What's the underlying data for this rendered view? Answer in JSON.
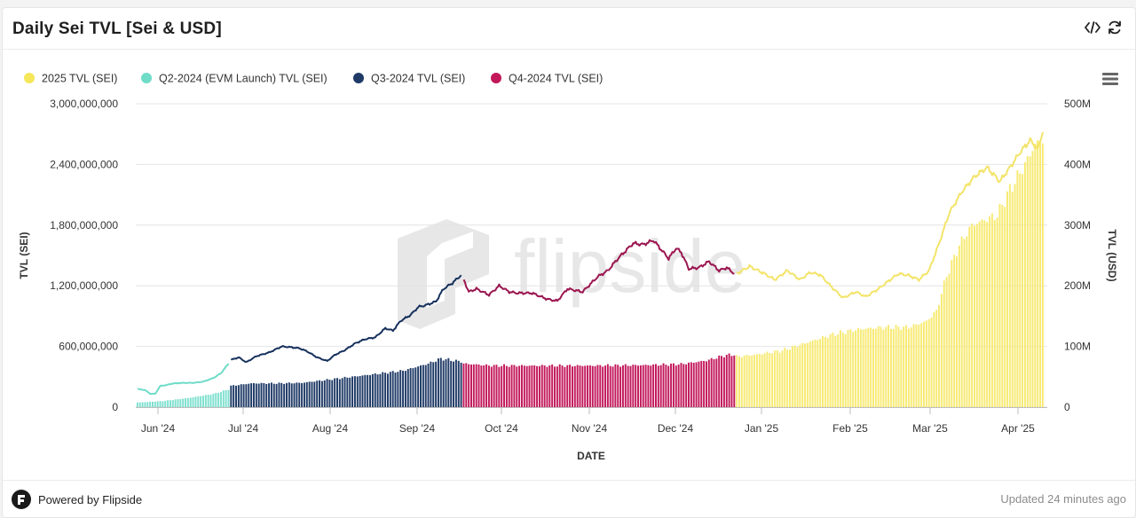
{
  "header": {
    "title": "Daily Sei TVL [Sei & USD]"
  },
  "footer": {
    "brand_label": "Powered by Flipside",
    "updated_label": "Updated 24 minutes ago"
  },
  "watermark": "flipside",
  "chart_data": {
    "type": "bar+line",
    "xlabel": "DATE",
    "ylabel_left": "TVL (SEI)",
    "ylabel_right": "TVL (USD)",
    "ylim_left": [
      0,
      3000000000
    ],
    "ylim_right": [
      0,
      500000000
    ],
    "yticks_left": [
      "3,000,000,000",
      "2,400,000,000",
      "1,800,000,000",
      "1,200,000,000",
      "600,000,000",
      "0"
    ],
    "yticks_right": [
      "500M",
      "400M",
      "300M",
      "200M",
      "100M",
      "0"
    ],
    "xticks": [
      "Jun '24",
      "Jul '24",
      "Aug '24",
      "Sep '24",
      "Oct '24",
      "Nov '24",
      "Dec '24",
      "Jan '25",
      "Feb '25",
      "Mar '25",
      "Apr '25"
    ],
    "legend_position": "top-left",
    "legend": [
      {
        "name": "2025 TVL (SEI)",
        "color": "#f5e65a"
      },
      {
        "name": "Q2-2024 (EVM Launch) TVL (SEI)",
        "color": "#6fdcc8"
      },
      {
        "name": "Q3-2024 TVL (SEI)",
        "color": "#1f3a66"
      },
      {
        "name": "Q4-2024 TVL (SEI)",
        "color": "#c2185b"
      }
    ],
    "series": [
      {
        "name": "Q2-2024 (EVM Launch) TVL (SEI)",
        "color": "#6fdcc8",
        "bar_color": "#7fe0cf",
        "axis": "left",
        "start_day": 0,
        "bar_key_days": [
          0,
          10,
          20,
          30,
          36
        ],
        "bar_key_values": [
          45000000,
          60000000,
          90000000,
          130000000,
          175000000
        ],
        "line_key_days": [
          0,
          3,
          5,
          7,
          9,
          11,
          14,
          18,
          22,
          26,
          30,
          33,
          36
        ],
        "line_key_values": [
          30000000,
          28000000,
          22000000,
          22000000,
          35000000,
          36000000,
          39000000,
          40000000,
          40000000,
          42000000,
          48000000,
          56000000,
          72000000
        ]
      },
      {
        "name": "Q3-2024 TVL (SEI)",
        "color": "#17315d",
        "bar_color": "#1f3a66",
        "axis": "left",
        "start_day": 37,
        "bar_key_days": [
          37,
          45,
          55,
          65,
          75,
          85,
          95,
          105,
          115,
          120,
          128
        ],
        "bar_key_values": [
          210000000,
          235000000,
          235000000,
          240000000,
          270000000,
          300000000,
          330000000,
          360000000,
          430000000,
          480000000,
          450000000
        ],
        "line_key_days": [
          37,
          40,
          43,
          47,
          52,
          57,
          60,
          64,
          67,
          71,
          75,
          78,
          82,
          86,
          90,
          94,
          98,
          101,
          104,
          108,
          111,
          114,
          118,
          121,
          124,
          126,
          128
        ],
        "line_key_values": [
          78000000,
          82000000,
          74000000,
          84000000,
          90000000,
          100000000,
          99000000,
          97000000,
          92000000,
          82000000,
          76000000,
          86000000,
          94000000,
          105000000,
          112000000,
          115000000,
          130000000,
          126000000,
          142000000,
          152000000,
          165000000,
          168000000,
          174000000,
          195000000,
          203000000,
          210000000,
          218000000
        ]
      },
      {
        "name": "Q4-2024 TVL (SEI)",
        "color": "#9b1650",
        "bar_color": "#c2185b",
        "axis": "left",
        "start_day": 129,
        "bar_key_days": [
          129,
          140,
          160,
          180,
          200,
          215,
          225,
          232,
          236
        ],
        "bar_key_values": [
          430000000,
          410000000,
          410000000,
          410000000,
          415000000,
          425000000,
          460000000,
          510000000,
          520000000
        ],
        "line_key_days": [
          129,
          131,
          134,
          139,
          143,
          147,
          150,
          156,
          162,
          166,
          170,
          176,
          182,
          186,
          190,
          196,
          200,
          204,
          208,
          210,
          213,
          215,
          218,
          222,
          226,
          230,
          233,
          236
        ],
        "line_key_values": [
          210000000,
          190000000,
          195000000,
          185000000,
          200000000,
          190000000,
          188000000,
          188000000,
          178000000,
          175000000,
          195000000,
          190000000,
          215000000,
          225000000,
          245000000,
          270000000,
          268000000,
          275000000,
          255000000,
          245000000,
          262000000,
          255000000,
          228000000,
          230000000,
          240000000,
          225000000,
          230000000,
          220000000
        ]
      },
      {
        "name": "2025 TVL (SEI)",
        "color": "#f3e46a",
        "bar_color": "#f7ea74",
        "axis": "left",
        "start_day": 237,
        "bar_key_days": [
          237,
          245,
          255,
          265,
          275,
          285,
          295,
          305,
          312,
          316,
          320,
          325,
          330,
          335,
          340,
          345,
          351,
          355,
          358
        ],
        "bar_key_values": [
          500000000,
          520000000,
          560000000,
          640000000,
          720000000,
          770000000,
          790000000,
          790000000,
          850000000,
          950000000,
          1300000000,
          1600000000,
          1800000000,
          1850000000,
          1900000000,
          2150000000,
          2400000000,
          2600000000,
          2650000000
        ],
        "line_key_days": [
          237,
          242,
          247,
          252,
          257,
          262,
          266,
          270,
          274,
          279,
          284,
          288,
          293,
          297,
          301,
          305,
          309,
          313,
          317,
          321,
          326,
          331,
          336,
          341,
          345,
          349,
          353,
          356,
          358
        ],
        "line_key_values": [
          220000000,
          232000000,
          222000000,
          210000000,
          225000000,
          210000000,
          222000000,
          218000000,
          200000000,
          180000000,
          190000000,
          182000000,
          195000000,
          208000000,
          220000000,
          217000000,
          210000000,
          225000000,
          270000000,
          320000000,
          355000000,
          380000000,
          395000000,
          372000000,
          395000000,
          420000000,
          440000000,
          425000000,
          455000000
        ]
      }
    ]
  }
}
